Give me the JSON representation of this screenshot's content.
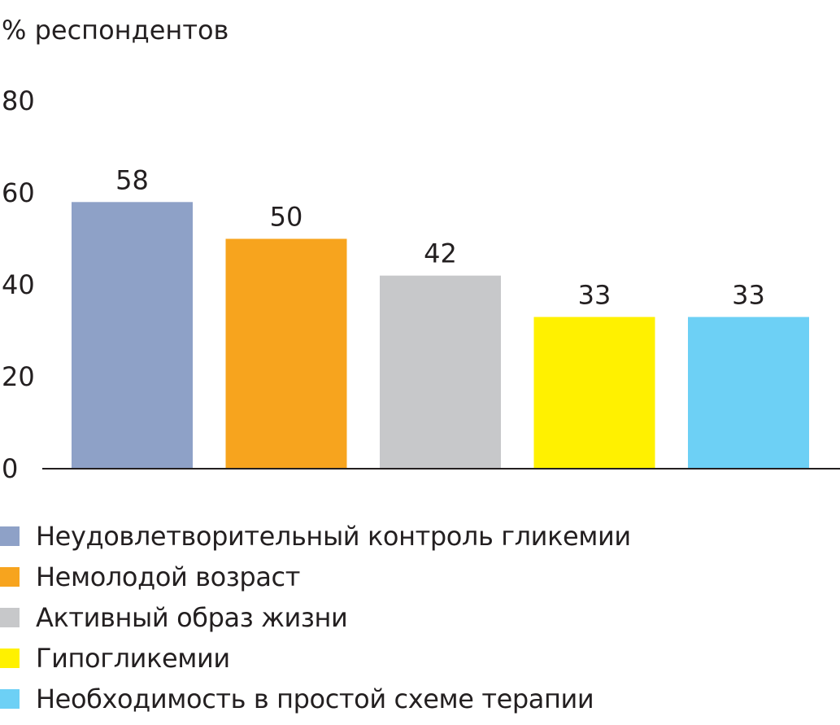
{
  "chart_data": {
    "type": "bar",
    "title": "",
    "xlabel": "",
    "ylabel": "% респондентов",
    "ylim": [
      0,
      80
    ],
    "yticks": [
      0,
      20,
      40,
      60,
      80
    ],
    "grid": false,
    "legend_position": "bottom",
    "categories": [
      "Неудовлетворительный контроль гликемии",
      "Немолодой возраст",
      "Активный образ жизни",
      "Гипогликемии",
      "Необходимость в простой схеме терапии"
    ],
    "values": [
      58,
      50,
      42,
      33,
      33
    ],
    "value_labels": [
      "58",
      "50",
      "42",
      "33",
      "33"
    ],
    "colors": [
      "#8ea1c7",
      "#f7a41e",
      "#c7c8ca",
      "#fff100",
      "#6dd0f5"
    ]
  }
}
